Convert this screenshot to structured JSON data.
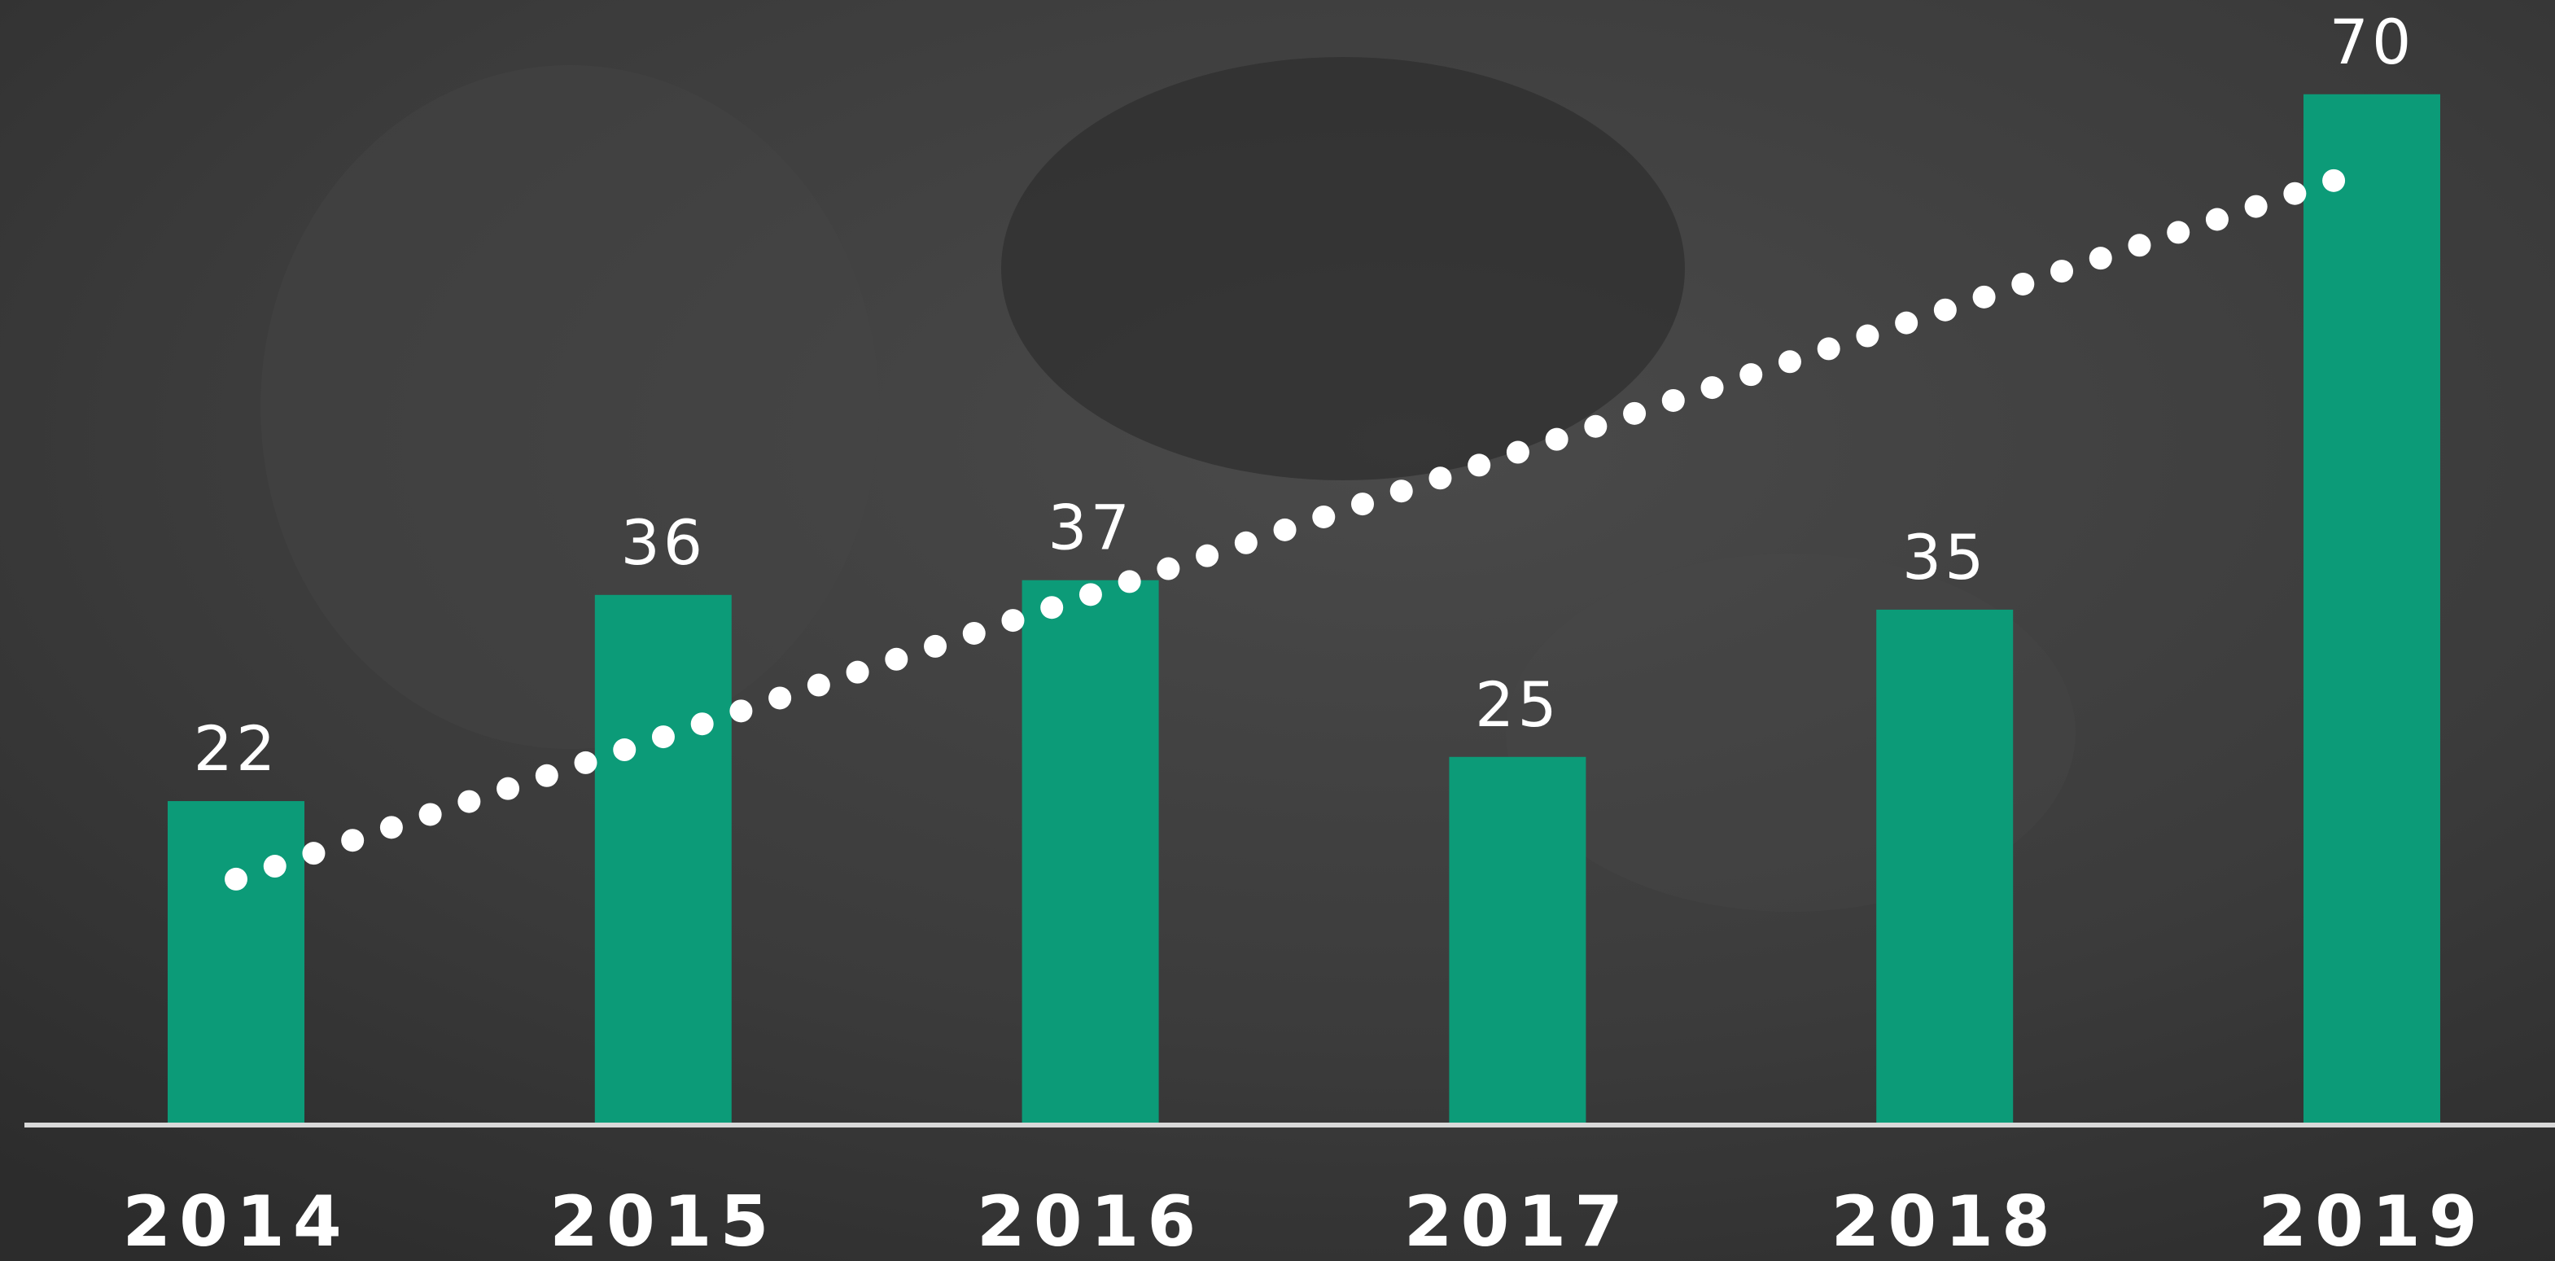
{
  "chart_data": {
    "type": "bar",
    "categories": [
      "2014",
      "2015",
      "2016",
      "2017",
      "2018",
      "2019"
    ],
    "values": [
      22,
      36,
      37,
      25,
      35,
      70
    ],
    "color": "#0c9b78",
    "ylim": [
      0,
      76.4
    ],
    "trend": [
      16.7,
      65
    ]
  }
}
